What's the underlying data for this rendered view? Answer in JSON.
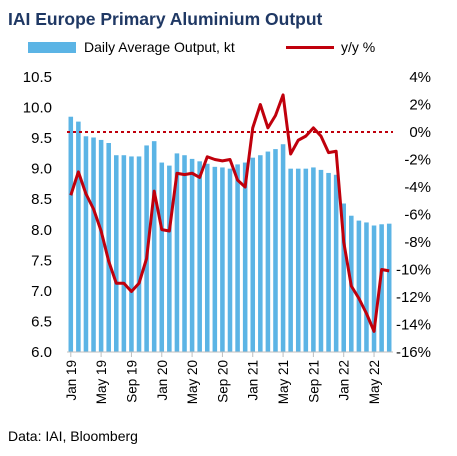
{
  "chart_data": {
    "type": "bar+line",
    "title": "IAI Europe Primary Aluminium Output",
    "source": "Data: IAI, Bloomberg",
    "legend_position": "top",
    "grid": false,
    "colors": {
      "bar": "#5bb4e5",
      "line": "#c0000c",
      "zero_line": "#c0000c",
      "title": "#1f3864",
      "text": "#000000"
    },
    "x_tick_labels": [
      "Jan 19",
      "May 19",
      "Sep 19",
      "Jan 20",
      "May 20",
      "Sep 20",
      "Jan 21",
      "May 21",
      "Sep 21",
      "Jan 22",
      "May 22"
    ],
    "x_tick_every": 4,
    "y_left": {
      "label": "",
      "range": [
        6.0,
        10.5
      ],
      "ticks": [
        "6.0",
        "6.5",
        "7.0",
        "7.5",
        "8.0",
        "8.5",
        "9.0",
        "9.5",
        "10.0",
        "10.5"
      ]
    },
    "y_right": {
      "label": "",
      "range": [
        -16,
        4
      ],
      "ticks": [
        "4%",
        "2%",
        "0%",
        "-2%",
        "-4%",
        "-6%",
        "-8%",
        "-10%",
        "-12%",
        "-14%",
        "-16%"
      ]
    },
    "categories": [
      "Jan 19",
      "Feb 19",
      "Mar 19",
      "Apr 19",
      "May 19",
      "Jun 19",
      "Jul 19",
      "Aug 19",
      "Sep 19",
      "Oct 19",
      "Nov 19",
      "Dec 19",
      "Jan 20",
      "Feb 20",
      "Mar 20",
      "Apr 20",
      "May 20",
      "Jun 20",
      "Jul 20",
      "Aug 20",
      "Sep 20",
      "Oct 20",
      "Nov 20",
      "Dec 20",
      "Jan 21",
      "Feb 21",
      "Mar 21",
      "Apr 21",
      "May 21",
      "Jun 21",
      "Jul 21",
      "Aug 21",
      "Sep 21",
      "Oct 21",
      "Nov 21",
      "Dec 21",
      "Jan 22",
      "Feb 22",
      "Mar 22",
      "Apr 22",
      "May 22",
      "Jun 22",
      "Jul 22"
    ],
    "series": [
      {
        "name": "Daily Average Output, kt",
        "type": "bar",
        "axis": "left",
        "values": [
          9.85,
          9.77,
          9.53,
          9.51,
          9.47,
          9.42,
          9.22,
          9.22,
          9.2,
          9.2,
          9.38,
          9.45,
          9.1,
          9.05,
          9.25,
          9.22,
          9.16,
          9.12,
          9.08,
          9.03,
          9.02,
          9.0,
          9.07,
          9.1,
          9.18,
          9.22,
          9.28,
          9.32,
          9.4,
          9.0,
          9.0,
          9.0,
          9.02,
          8.98,
          8.93,
          8.9,
          8.43,
          8.23,
          8.15,
          8.12,
          8.07,
          8.09,
          8.1
        ]
      },
      {
        "name": "y/y %",
        "type": "line",
        "axis": "right",
        "values": [
          -4.6,
          -2.9,
          -4.5,
          -5.6,
          -7.2,
          -9.4,
          -11.0,
          -11.0,
          -11.6,
          -11.0,
          -9.2,
          -4.3,
          -7.1,
          -7.2,
          -3.0,
          -3.1,
          -3.0,
          -3.3,
          -1.8,
          -2.0,
          -2.1,
          -2.0,
          -3.5,
          -4.0,
          0.3,
          2.0,
          0.3,
          1.2,
          2.7,
          -1.6,
          -0.6,
          -0.3,
          0.3,
          -0.3,
          -1.5,
          -1.4,
          -8.0,
          -11.2,
          -12.1,
          -13.2,
          -14.5,
          -10.0,
          -10.1
        ]
      }
    ]
  }
}
